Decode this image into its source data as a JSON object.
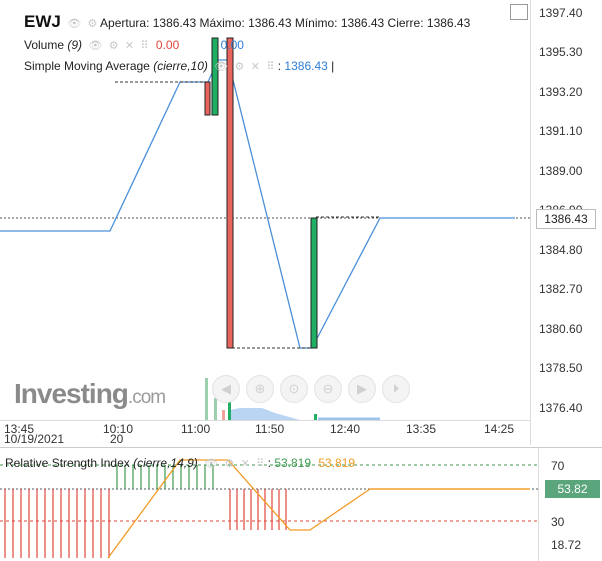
{
  "legend": {
    "symbol": "EWJ",
    "ohlc": "Apertura: 1386.43 Máximo: 1386.43 Mínimo: 1386.43 Cierre: 1386.43",
    "volume_label": "Volume",
    "volume_param": "(9)",
    "volume_value_1": "0.00",
    "volume_value_2": "0.00",
    "sma_label": "Simple Moving Average",
    "sma_param": "(cierre,10)",
    "sma_value": "1386.43"
  },
  "price_axis": {
    "ticks": [
      "1397.40",
      "1395.30",
      "1393.20",
      "1391.10",
      "1389.00",
      "1386.90",
      "1384.80",
      "1382.70",
      "1380.60",
      "1378.50",
      "1376.40"
    ],
    "last_price": "1386.43"
  },
  "time_axis": {
    "ticks": [
      "13:45",
      "10:10",
      "11:00",
      "11:50",
      "12:40",
      "13:35",
      "14:25"
    ],
    "date_label": "10/19/2021",
    "day_label": "20"
  },
  "rsi": {
    "label": "Relative Strength Index",
    "param": "(cierre,14,9)",
    "value_1": "53.819",
    "value_2": "53.819",
    "axis_ticks": [
      "70",
      "30",
      "18.72"
    ],
    "badge": "53.82"
  },
  "watermark": {
    "brand": "Investing",
    "suffix": ".com"
  },
  "colors": {
    "up": "#26a65b",
    "down": "#e0473b",
    "line": "#4a8fd9",
    "rsi_signal": "#f29b26"
  },
  "toolbar": {
    "icons": [
      "arrow-left-icon",
      "zoom-in-icon",
      "zoom-reset-icon",
      "zoom-out-icon",
      "arrow-right-icon",
      "play-icon"
    ]
  }
}
